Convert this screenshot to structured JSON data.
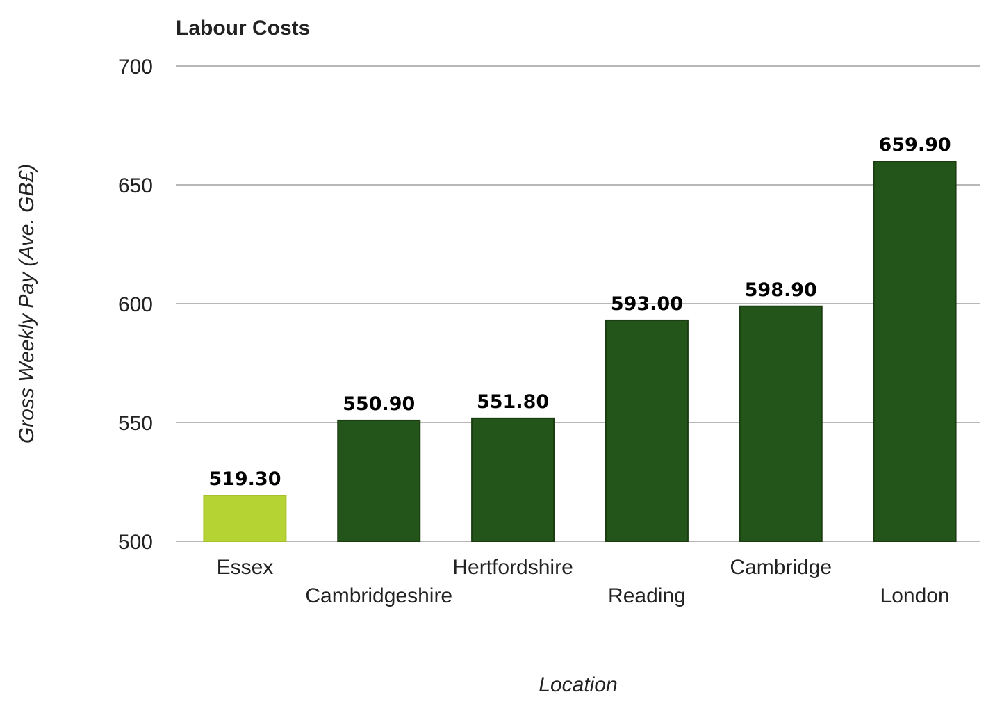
{
  "chart_data": {
    "type": "bar",
    "title": "Labour Costs",
    "xlabel": "Location",
    "ylabel": "Gross Weekly Pay (Ave. GB£)",
    "categories": [
      "Essex",
      "Cambridgeshire",
      "Hertfordshire",
      "Reading",
      "Cambridge",
      "London"
    ],
    "values": [
      519.3,
      550.9,
      551.8,
      593.0,
      598.9,
      659.9
    ],
    "data_labels": [
      "519.30",
      "550.90",
      "551.80",
      "593.00",
      "598.90",
      "659.90"
    ],
    "ylim": [
      500,
      700
    ],
    "yticks": [
      "500",
      "550",
      "600",
      "650",
      "700"
    ],
    "grid": true,
    "legend": "none",
    "colors": {
      "highlight": "#b6d334",
      "default": "#23541a",
      "bar_border": "#1a3d12"
    },
    "highlight_index": 0
  }
}
